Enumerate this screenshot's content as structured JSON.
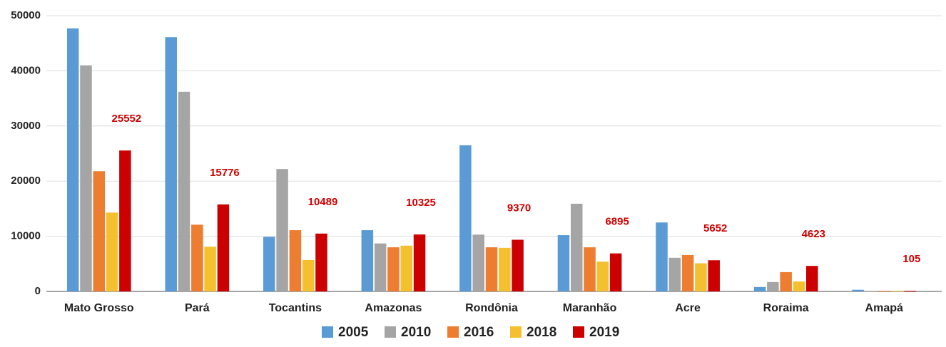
{
  "chart_data": {
    "type": "bar",
    "categories": [
      "Mato Grosso",
      "Pará",
      "Tocantins",
      "Amazonas",
      "Rondônia",
      "Maranhão",
      "Acre",
      "Roraima",
      "Amapá"
    ],
    "series": [
      {
        "name": "2005",
        "color": "#5b9bd5",
        "values": [
          47700,
          46100,
          9900,
          11100,
          26500,
          10200,
          12500,
          800,
          300
        ]
      },
      {
        "name": "2010",
        "color": "#a5a5a5",
        "values": [
          41000,
          36200,
          22200,
          8700,
          10300,
          15900,
          6100,
          1700,
          50
        ]
      },
      {
        "name": "2016",
        "color": "#ed7d31",
        "values": [
          21800,
          12100,
          11100,
          8000,
          8000,
          8000,
          6600,
          3500,
          100
        ]
      },
      {
        "name": "2018",
        "color": "#f4c02f",
        "values": [
          14300,
          8100,
          5700,
          8300,
          7900,
          5400,
          5100,
          1800,
          100
        ]
      },
      {
        "name": "2019",
        "color": "#cc0000",
        "values": [
          25552,
          15776,
          10489,
          10325,
          9370,
          6895,
          5652,
          4623,
          105
        ],
        "data_labels": true
      }
    ],
    "ylim": [
      0,
      50000
    ],
    "yticks": [
      0,
      10000,
      20000,
      30000,
      40000,
      50000
    ],
    "grid": true,
    "legend": "bottom"
  }
}
